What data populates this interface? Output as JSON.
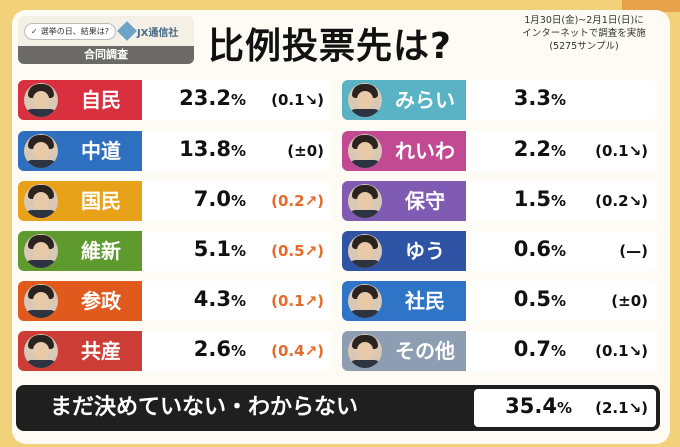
{
  "header": {
    "logo_survey_label": "選挙の日、結果は?",
    "logo_brand": "JX通信社",
    "logo_bar_label": "合同調査",
    "title": "比例投票先は?",
    "note_line1": "1月30日(金)~2月1日(日)に",
    "note_line2": "インターネットで調査を実施",
    "note_line3": "(5275サンプル)"
  },
  "colors": {
    "jimin": "#d8303f",
    "chudo": "#2f6fc0",
    "kokumin": "#e8a21a",
    "ishin": "#5f9a2f",
    "sansei": "#e05a1e",
    "kyosan": "#cc3d36",
    "mirai": "#5ab3c4",
    "reiwa": "#c14a93",
    "hoshu": "#7f5bb3",
    "yuu": "#2f54a6",
    "shamin": "#2f74c7",
    "sonota": "#8e9eb2",
    "up": "#e46b2c"
  },
  "parties_left": [
    {
      "name": "自民",
      "value": "23.2",
      "change": "(0.1",
      "dir": "down",
      "color_key": "jimin"
    },
    {
      "name": "中道",
      "value": "13.8",
      "change": "(±0)",
      "dir": "flat",
      "color_key": "chudo"
    },
    {
      "name": "国民",
      "value": "7.0",
      "change": "(0.2",
      "dir": "up",
      "color_key": "kokumin"
    },
    {
      "name": "維新",
      "value": "5.1",
      "change": "(0.5",
      "dir": "up",
      "color_key": "ishin"
    },
    {
      "name": "参政",
      "value": "4.3",
      "change": "(0.1",
      "dir": "up",
      "color_key": "sansei"
    },
    {
      "name": "共産",
      "value": "2.6",
      "change": "(0.4",
      "dir": "up",
      "color_key": "kyosan"
    }
  ],
  "parties_right": [
    {
      "name": "みらい",
      "value": "3.3",
      "change": "",
      "dir": "none",
      "color_key": "mirai"
    },
    {
      "name": "れいわ",
      "value": "2.2",
      "change": "(0.1",
      "dir": "down",
      "color_key": "reiwa"
    },
    {
      "name": "保守",
      "value": "1.5",
      "change": "(0.2",
      "dir": "down",
      "color_key": "hoshu"
    },
    {
      "name": "ゆう",
      "value": "0.6",
      "change": "(—)",
      "dir": "flat",
      "color_key": "yuu"
    },
    {
      "name": "社民",
      "value": "0.5",
      "change": "(±0)",
      "dir": "flat",
      "color_key": "shamin"
    },
    {
      "name": "その他",
      "value": "0.7",
      "change": "(0.1",
      "dir": "down",
      "color_key": "sonota"
    }
  ],
  "undecided": {
    "label": "まだ決めていない・わからない",
    "value": "35.4",
    "change": "(2.1",
    "dir": "down"
  },
  "percent_sign": "%"
}
